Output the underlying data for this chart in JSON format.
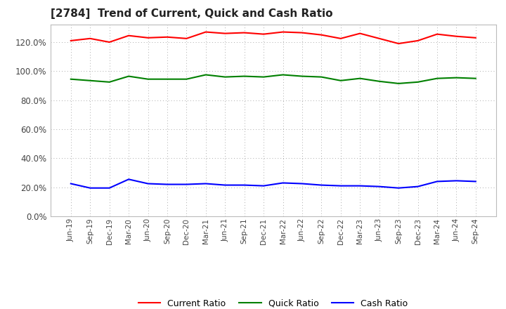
{
  "title": "[2784]  Trend of Current, Quick and Cash Ratio",
  "labels": [
    "Jun-19",
    "Sep-19",
    "Dec-19",
    "Mar-20",
    "Jun-20",
    "Sep-20",
    "Dec-20",
    "Mar-21",
    "Jun-21",
    "Sep-21",
    "Dec-21",
    "Mar-22",
    "Jun-22",
    "Sep-22",
    "Dec-22",
    "Mar-23",
    "Jun-23",
    "Sep-23",
    "Dec-23",
    "Mar-24",
    "Jun-24",
    "Sep-24"
  ],
  "current_ratio": [
    121.0,
    122.5,
    120.0,
    124.5,
    123.0,
    123.5,
    122.5,
    127.0,
    126.0,
    126.5,
    125.5,
    127.0,
    126.5,
    125.0,
    122.5,
    126.0,
    122.5,
    119.0,
    121.0,
    125.5,
    124.0,
    123.0
  ],
  "quick_ratio": [
    94.5,
    93.5,
    92.5,
    96.5,
    94.5,
    94.5,
    94.5,
    97.5,
    96.0,
    96.5,
    96.0,
    97.5,
    96.5,
    96.0,
    93.5,
    95.0,
    93.0,
    91.5,
    92.5,
    95.0,
    95.5,
    95.0
  ],
  "cash_ratio": [
    22.5,
    19.5,
    19.5,
    25.5,
    22.5,
    22.0,
    22.0,
    22.5,
    21.5,
    21.5,
    21.0,
    23.0,
    22.5,
    21.5,
    21.0,
    21.0,
    20.5,
    19.5,
    20.5,
    24.0,
    24.5,
    24.0
  ],
  "current_color": "#ff0000",
  "quick_color": "#008000",
  "cash_color": "#0000ff",
  "background_color": "#ffffff",
  "grid_color": "#aaaaaa",
  "ylim": [
    0,
    132
  ],
  "yticks": [
    0,
    20,
    40,
    60,
    80,
    100,
    120
  ],
  "legend_labels": [
    "Current Ratio",
    "Quick Ratio",
    "Cash Ratio"
  ]
}
